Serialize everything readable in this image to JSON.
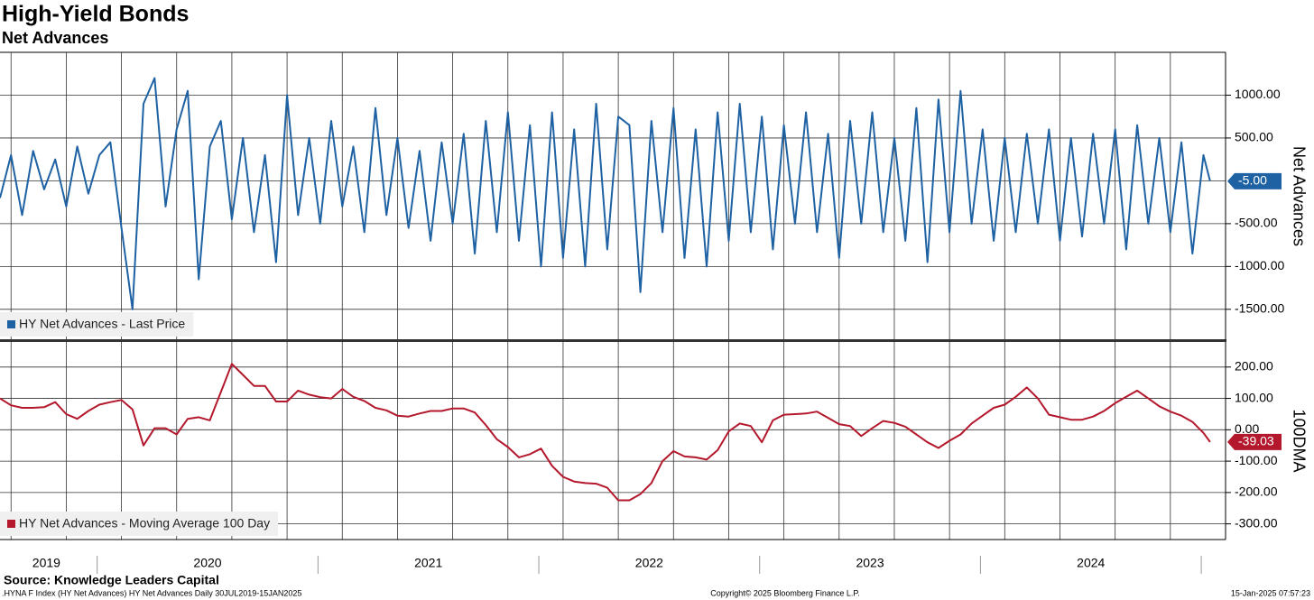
{
  "chart_data": {
    "type": "line",
    "title": "High-Yield Bonds",
    "subtitle": "Net Advances",
    "source": "Source: Knowledge Leaders Capital",
    "footer_left": ".HYNA F Index (HY Net Advances) HY Net Advances  Daily 30JUL2019-15JAN2025",
    "footer_center": "Copyright© 2025 Bloomberg Finance L.P.",
    "footer_right": "15-Jan-2025 07:57:23",
    "xlim": [
      2019.56,
      2025.11
    ],
    "xgrid": [
      2019.61,
      2019.86,
      2020.11,
      2020.36,
      2020.61,
      2020.86,
      2021.11,
      2021.36,
      2021.61,
      2021.86,
      2022.11,
      2022.36,
      2022.61,
      2022.86,
      2023.11,
      2023.36,
      2023.61,
      2023.86,
      2024.11,
      2024.36,
      2024.61,
      2024.86
    ],
    "xticks": [
      {
        "value": 2019.77,
        "label": "2019"
      },
      {
        "value": 2020.5,
        "label": "2020"
      },
      {
        "value": 2021.5,
        "label": "2021"
      },
      {
        "value": 2022.5,
        "label": "2022"
      },
      {
        "value": 2023.5,
        "label": "2023"
      },
      {
        "value": 2024.5,
        "label": "2024"
      }
    ],
    "year_bounds": [
      2020,
      2021,
      2022,
      2023,
      2024,
      2025
    ],
    "x": [
      2019.56,
      2019.61,
      2019.66,
      2019.71,
      2019.76,
      2019.81,
      2019.86,
      2019.91,
      2019.96,
      2020.01,
      2020.06,
      2020.11,
      2020.16,
      2020.21,
      2020.26,
      2020.31,
      2020.36,
      2020.41,
      2020.46,
      2020.51,
      2020.56,
      2020.61,
      2020.66,
      2020.71,
      2020.76,
      2020.81,
      2020.86,
      2020.91,
      2020.96,
      2021.01,
      2021.06,
      2021.11,
      2021.16,
      2021.21,
      2021.26,
      2021.31,
      2021.36,
      2021.41,
      2021.46,
      2021.51,
      2021.56,
      2021.61,
      2021.66,
      2021.71,
      2021.76,
      2021.81,
      2021.86,
      2021.91,
      2021.96,
      2022.01,
      2022.06,
      2022.11,
      2022.16,
      2022.21,
      2022.26,
      2022.31,
      2022.36,
      2022.41,
      2022.46,
      2022.51,
      2022.56,
      2022.61,
      2022.66,
      2022.71,
      2022.76,
      2022.81,
      2022.86,
      2022.91,
      2022.96,
      2023.01,
      2023.06,
      2023.11,
      2023.16,
      2023.21,
      2023.26,
      2023.31,
      2023.36,
      2023.41,
      2023.46,
      2023.51,
      2023.56,
      2023.61,
      2023.66,
      2023.71,
      2023.76,
      2023.81,
      2023.86,
      2023.91,
      2023.96,
      2024.01,
      2024.06,
      2024.11,
      2024.16,
      2024.21,
      2024.26,
      2024.31,
      2024.36,
      2024.41,
      2024.46,
      2024.51,
      2024.56,
      2024.61,
      2024.66,
      2024.71,
      2024.76,
      2024.81,
      2024.86,
      2024.91,
      2024.96,
      2025.01,
      2025.04
    ],
    "panels": [
      {
        "axis_label": "Net Advances",
        "legend": "lower left",
        "ylim": [
          -1860,
          1500
        ],
        "yticks": [
          {
            "value": -1500,
            "label": "-1500.00"
          },
          {
            "value": -1000,
            "label": "-1000.00"
          },
          {
            "value": -500,
            "label": "-500.00"
          },
          {
            "value": 500,
            "label": "500.00"
          },
          {
            "value": 1000,
            "label": "1000.00"
          }
        ],
        "ygrid": [
          0
        ],
        "last_label": "-5.00",
        "series": [
          {
            "name": "HY Net Advances - Last Price",
            "color": "#1f62a3",
            "values": [
              -200,
              300,
              -400,
              350,
              -100,
              250,
              -300,
              400,
              -150,
              300,
              450,
              -550,
              -1500,
              900,
              1200,
              -300,
              600,
              1050,
              -1150,
              400,
              700,
              -450,
              500,
              -600,
              300,
              -950,
              1000,
              -400,
              500,
              -500,
              700,
              -300,
              400,
              -600,
              850,
              -400,
              500,
              -550,
              350,
              -700,
              450,
              -500,
              550,
              -850,
              700,
              -600,
              800,
              -700,
              650,
              -1000,
              800,
              -900,
              600,
              -1000,
              900,
              -800,
              750,
              650,
              -1300,
              700,
              -600,
              850,
              -900,
              600,
              -1000,
              800,
              -700,
              900,
              -600,
              750,
              -800,
              650,
              -500,
              800,
              -600,
              550,
              -900,
              700,
              -500,
              800,
              -600,
              500,
              -700,
              850,
              -950,
              950,
              -600,
              1050,
              -500,
              600,
              -700,
              500,
              -600,
              550,
              -500,
              600,
              -700,
              500,
              -650,
              550,
              -500,
              600,
              -800,
              650,
              -500,
              500,
              -600,
              450,
              -850,
              300,
              -5
            ]
          }
        ]
      },
      {
        "axis_label": "100DMA",
        "legend": "lower left",
        "ylim": [
          -350,
          280
        ],
        "yticks": [
          {
            "value": -300,
            "label": "-300.00"
          },
          {
            "value": -200,
            "label": "-200.00"
          },
          {
            "value": -100,
            "label": "-100.00"
          },
          {
            "value": 0,
            "label": "0.00"
          },
          {
            "value": 100,
            "label": "100.00"
          },
          {
            "value": 200,
            "label": "200.00"
          }
        ],
        "ygrid": [],
        "last_label": "-39.03",
        "series": [
          {
            "name": "HY Net Advances - Moving Average 100 Day",
            "color": "#b4182d",
            "values": [
              100,
              78,
              70,
              70,
              72,
              88,
              50,
              35,
              60,
              80,
              88,
              95,
              65,
              -50,
              5,
              5,
              -15,
              35,
              40,
              30,
              120,
              210,
              175,
              140,
              140,
              90,
              90,
              125,
              112,
              104,
              100,
              130,
              105,
              92,
              70,
              62,
              45,
              42,
              52,
              60,
              60,
              68,
              68,
              55,
              15,
              -30,
              -55,
              -88,
              -78,
              -60,
              -115,
              -150,
              -165,
              -170,
              -172,
              -185,
              -225,
              -225,
              -205,
              -170,
              -100,
              -68,
              -85,
              -88,
              -95,
              -65,
              -5,
              20,
              12,
              -40,
              30,
              48,
              50,
              52,
              58,
              38,
              18,
              12,
              -20,
              5,
              28,
              22,
              10,
              -15,
              -40,
              -58,
              -35,
              -15,
              20,
              45,
              70,
              80,
              105,
              135,
              100,
              48,
              40,
              32,
              32,
              42,
              60,
              85,
              105,
              125,
              100,
              75,
              58,
              45,
              25,
              -10,
              -39.03
            ]
          }
        ]
      }
    ]
  }
}
